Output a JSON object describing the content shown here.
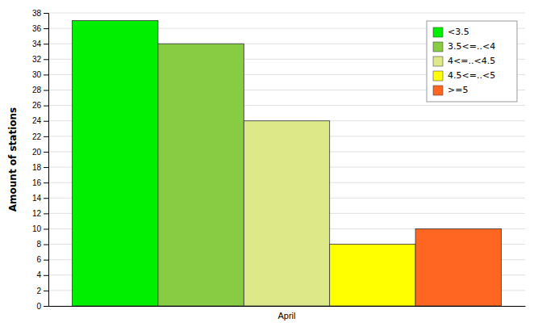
{
  "chart_data": {
    "type": "bar",
    "categories": [
      "April"
    ],
    "series": [
      {
        "name": "<3.5",
        "color": "#00ee00",
        "values": [
          37
        ]
      },
      {
        "name": "3.5<=..<4",
        "color": "#88cc44",
        "values": [
          34
        ]
      },
      {
        "name": "4<=..<4.5",
        "color": "#dde888",
        "values": [
          24
        ]
      },
      {
        "name": "4.5<=..<5",
        "color": "#ffff00",
        "values": [
          8
        ]
      },
      {
        "name": ">=5",
        "color": "#ff6622",
        "values": [
          10
        ]
      }
    ],
    "ylabel": "Amount of stations",
    "ylim": [
      0,
      38
    ],
    "yticks": [
      0,
      2,
      4,
      6,
      8,
      10,
      12,
      14,
      16,
      18,
      20,
      22,
      24,
      26,
      28,
      30,
      32,
      34,
      36,
      38
    ],
    "grid": true,
    "legend": "upper right"
  }
}
